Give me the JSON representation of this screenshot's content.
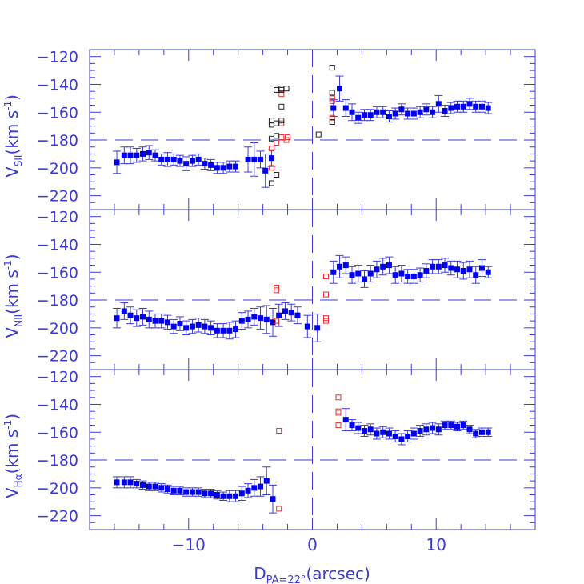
{
  "figure": {
    "xlabel_main": "D",
    "xlabel_sub": "PA=22°",
    "xlabel_tail": "(arcsec)",
    "color_axis": "#3b3bd6",
    "color_filled": "#0000ee",
    "color_red": "#dd3333",
    "color_black": "#222222"
  },
  "chart_data": [
    {
      "type": "scatter",
      "panel": "top",
      "ylabel_main": "V",
      "ylabel_sub": "SII",
      "ylabel_tail": "(km s",
      "ylabel_sup": "-1",
      "ylabel_close": ")",
      "xlim": [
        -18,
        18
      ],
      "ylim": [
        -230,
        -115
      ],
      "xticks": [
        -10,
        0,
        10
      ],
      "yticks": [
        -120,
        -140,
        -160,
        -180,
        -200,
        -220
      ],
      "reference_lines": {
        "horizontal_y": -180,
        "vertical_x": 0
      },
      "series": [
        {
          "marker": "filled-square",
          "points": [
            [
              -15.8,
              -196,
              8
            ],
            [
              -15.2,
              -191,
              6
            ],
            [
              -14.7,
              -191,
              6
            ],
            [
              -14.2,
              -191,
              5
            ],
            [
              -13.7,
              -190,
              5
            ],
            [
              -13.2,
              -189,
              5
            ],
            [
              -12.7,
              -191,
              4
            ],
            [
              -12.2,
              -194,
              4
            ],
            [
              -11.7,
              -194,
              5
            ],
            [
              -11.2,
              -194,
              4
            ],
            [
              -10.7,
              -195,
              4
            ],
            [
              -10.2,
              -197,
              5
            ],
            [
              -9.7,
              -195,
              4
            ],
            [
              -9.2,
              -194,
              4
            ],
            [
              -8.7,
              -197,
              4
            ],
            [
              -8.2,
              -198,
              4
            ],
            [
              -7.7,
              -200,
              4
            ],
            [
              -7.2,
              -200,
              4
            ],
            [
              -6.7,
              -199,
              4
            ],
            [
              -6.2,
              -199,
              4
            ],
            [
              -5.2,
              -194,
              9
            ],
            [
              -4.7,
              -194,
              12
            ],
            [
              -4.2,
              -194,
              6
            ],
            [
              -3.8,
              -202,
              12
            ],
            [
              -3.3,
              -193,
              6
            ],
            [
              1.7,
              -157,
              6
            ],
            [
              2.2,
              -143,
              9
            ],
            [
              2.7,
              -157,
              6
            ],
            [
              3.2,
              -160,
              6
            ],
            [
              3.7,
              -164,
              4
            ],
            [
              4.2,
              -162,
              4
            ],
            [
              4.7,
              -162,
              4
            ],
            [
              5.2,
              -160,
              4
            ],
            [
              5.7,
              -160,
              4
            ],
            [
              6.2,
              -163,
              4
            ],
            [
              6.7,
              -161,
              4
            ],
            [
              7.2,
              -158,
              4
            ],
            [
              7.7,
              -161,
              4
            ],
            [
              8.2,
              -161,
              4
            ],
            [
              8.7,
              -160,
              4
            ],
            [
              9.2,
              -158,
              4
            ],
            [
              9.7,
              -160,
              4
            ],
            [
              10.2,
              -154,
              6
            ],
            [
              10.7,
              -159,
              4
            ],
            [
              11.2,
              -157,
              4
            ],
            [
              11.7,
              -156,
              4
            ],
            [
              12.2,
              -156,
              4
            ],
            [
              12.7,
              -154,
              4
            ],
            [
              13.2,
              -156,
              4
            ],
            [
              13.7,
              -156,
              4
            ],
            [
              14.2,
              -157,
              4
            ]
          ]
        },
        {
          "marker": "open-square-red",
          "points": [
            [
              -3.3,
              -186
            ],
            [
              -3.3,
              -200
            ],
            [
              -2.9,
              -182
            ],
            [
              -2.5,
              -147
            ],
            [
              -2.5,
              -168
            ],
            [
              -2.5,
              -178
            ],
            [
              -2.1,
              -180
            ],
            [
              -2.0,
              -178
            ],
            [
              1.6,
              -150
            ],
            [
              1.6,
              -164
            ],
            [
              1.6,
              -152
            ]
          ]
        },
        {
          "marker": "open-square-black",
          "points": [
            [
              -3.3,
              -166
            ],
            [
              -3.3,
              -169
            ],
            [
              -3.3,
              -179
            ],
            [
              -3.3,
              -211
            ],
            [
              -2.9,
              -144
            ],
            [
              -2.9,
              -177
            ],
            [
              -2.9,
              -205
            ],
            [
              -2.9,
              -168
            ],
            [
              -2.5,
              -143
            ],
            [
              -2.5,
              -144
            ],
            [
              -2.5,
              -156
            ],
            [
              -2.5,
              -166
            ],
            [
              -2.1,
              -143
            ],
            [
              0.5,
              -176
            ],
            [
              1.6,
              -128
            ],
            [
              1.6,
              -146
            ],
            [
              1.6,
              -167
            ]
          ]
        }
      ]
    },
    {
      "type": "scatter",
      "panel": "middle",
      "ylabel_main": "V",
      "ylabel_sub": "NII",
      "ylabel_tail": "(km s",
      "ylabel_sup": "-1",
      "ylabel_close": ")",
      "xlim": [
        -18,
        18
      ],
      "ylim": [
        -230,
        -115
      ],
      "xticks": [
        -10,
        0,
        10
      ],
      "yticks": [
        -120,
        -140,
        -160,
        -180,
        -200,
        -220
      ],
      "reference_lines": {
        "horizontal_y": -180,
        "vertical_x": 0
      },
      "series": [
        {
          "marker": "filled-square",
          "points": [
            [
              -15.8,
              -193,
              7
            ],
            [
              -15.2,
              -188,
              6
            ],
            [
              -14.7,
              -191,
              6
            ],
            [
              -14.2,
              -193,
              6
            ],
            [
              -13.7,
              -192,
              6
            ],
            [
              -13.2,
              -194,
              6
            ],
            [
              -12.7,
              -195,
              5
            ],
            [
              -12.2,
              -195,
              5
            ],
            [
              -11.7,
              -196,
              5
            ],
            [
              -11.2,
              -199,
              5
            ],
            [
              -10.7,
              -197,
              5
            ],
            [
              -10.2,
              -200,
              5
            ],
            [
              -9.7,
              -199,
              5
            ],
            [
              -9.2,
              -198,
              5
            ],
            [
              -8.7,
              -199,
              5
            ],
            [
              -8.2,
              -200,
              5
            ],
            [
              -7.7,
              -202,
              5
            ],
            [
              -7.2,
              -202,
              5
            ],
            [
              -6.7,
              -202,
              6
            ],
            [
              -6.2,
              -201,
              6
            ],
            [
              -5.7,
              -195,
              6
            ],
            [
              -5.2,
              -194,
              6
            ],
            [
              -4.7,
              -192,
              6
            ],
            [
              -4.2,
              -193,
              8
            ],
            [
              -3.7,
              -194,
              10
            ],
            [
              -3.2,
              -196,
              10
            ],
            [
              -2.7,
              -191,
              8
            ],
            [
              -2.2,
              -188,
              6
            ],
            [
              -1.7,
              -189,
              6
            ],
            [
              -1.2,
              -191,
              6
            ],
            [
              -0.4,
              -199,
              8
            ],
            [
              0.4,
              -200,
              10
            ],
            [
              1.7,
              -160,
              8
            ],
            [
              2.2,
              -156,
              8
            ],
            [
              2.7,
              -155,
              6
            ],
            [
              3.2,
              -162,
              6
            ],
            [
              3.7,
              -161,
              6
            ],
            [
              4.2,
              -165,
              6
            ],
            [
              4.7,
              -161,
              6
            ],
            [
              5.2,
              -158,
              6
            ],
            [
              5.7,
              -156,
              6
            ],
            [
              6.2,
              -155,
              6
            ],
            [
              6.7,
              -162,
              6
            ],
            [
              7.2,
              -161,
              6
            ],
            [
              7.7,
              -163,
              5
            ],
            [
              8.2,
              -163,
              5
            ],
            [
              8.7,
              -162,
              5
            ],
            [
              9.2,
              -159,
              5
            ],
            [
              9.7,
              -156,
              5
            ],
            [
              10.2,
              -156,
              5
            ],
            [
              10.7,
              -155,
              5
            ],
            [
              11.2,
              -157,
              5
            ],
            [
              11.7,
              -158,
              6
            ],
            [
              12.2,
              -159,
              6
            ],
            [
              12.7,
              -158,
              6
            ],
            [
              13.2,
              -162,
              6
            ],
            [
              13.7,
              -157,
              6
            ],
            [
              14.2,
              -160,
              4
            ]
          ]
        },
        {
          "marker": "open-square-red",
          "points": [
            [
              -2.9,
              -171
            ],
            [
              -2.9,
              -173
            ],
            [
              -2.9,
              -195
            ],
            [
              1.1,
              -163
            ],
            [
              1.1,
              -176
            ],
            [
              1.1,
              -193
            ],
            [
              1.1,
              -195
            ]
          ]
        }
      ]
    },
    {
      "type": "scatter",
      "panel": "bottom",
      "ylabel_main": "V",
      "ylabel_sub": "Hα",
      "ylabel_tail": "(km s",
      "ylabel_sup": "-1",
      "ylabel_close": ")",
      "xlim": [
        -18,
        18
      ],
      "ylim": [
        -230,
        -115
      ],
      "xticks": [
        -10,
        0,
        10
      ],
      "yticks": [
        -120,
        -140,
        -160,
        -180,
        -200,
        -220
      ],
      "xticklabels": [
        "−10",
        "0",
        "10"
      ],
      "reference_lines": {
        "horizontal_y": -180,
        "vertical_x": 0
      },
      "series": [
        {
          "marker": "filled-square",
          "points": [
            [
              -15.8,
              -196,
              4
            ],
            [
              -15.2,
              -196,
              4
            ],
            [
              -14.7,
              -196,
              4
            ],
            [
              -14.2,
              -197,
              3
            ],
            [
              -13.7,
              -198,
              3
            ],
            [
              -13.2,
              -199,
              3
            ],
            [
              -12.7,
              -199,
              3
            ],
            [
              -12.2,
              -200,
              3
            ],
            [
              -11.7,
              -201,
              3
            ],
            [
              -11.2,
              -202,
              3
            ],
            [
              -10.7,
              -202,
              3
            ],
            [
              -10.2,
              -203,
              3
            ],
            [
              -9.7,
              -203,
              3
            ],
            [
              -9.2,
              -203,
              3
            ],
            [
              -8.7,
              -204,
              3
            ],
            [
              -8.2,
              -204,
              3
            ],
            [
              -7.7,
              -205,
              3
            ],
            [
              -7.2,
              -206,
              3
            ],
            [
              -6.7,
              -206,
              4
            ],
            [
              -6.2,
              -206,
              4
            ],
            [
              -5.7,
              -204,
              5
            ],
            [
              -5.2,
              -202,
              5
            ],
            [
              -4.7,
              -200,
              6
            ],
            [
              -4.2,
              -199,
              7
            ],
            [
              -3.7,
              -195,
              10
            ],
            [
              -3.2,
              -208,
              10
            ],
            [
              2.7,
              -151,
              8
            ],
            [
              3.2,
              -155,
              4
            ],
            [
              3.7,
              -157,
              4
            ],
            [
              4.2,
              -159,
              4
            ],
            [
              4.7,
              -158,
              4
            ],
            [
              5.2,
              -161,
              4
            ],
            [
              5.7,
              -160,
              4
            ],
            [
              6.2,
              -161,
              4
            ],
            [
              6.7,
              -163,
              4
            ],
            [
              7.2,
              -165,
              4
            ],
            [
              7.7,
              -163,
              4
            ],
            [
              8.2,
              -161,
              4
            ],
            [
              8.7,
              -159,
              4
            ],
            [
              9.2,
              -158,
              4
            ],
            [
              9.7,
              -157,
              4
            ],
            [
              10.2,
              -158,
              4
            ],
            [
              10.7,
              -155,
              3
            ],
            [
              11.2,
              -155,
              3
            ],
            [
              11.7,
              -156,
              3
            ],
            [
              12.2,
              -155,
              3
            ],
            [
              12.7,
              -158,
              3
            ],
            [
              13.2,
              -161,
              3
            ],
            [
              13.7,
              -160,
              3
            ],
            [
              14.2,
              -160,
              3
            ]
          ]
        },
        {
          "marker": "open-square-red",
          "points": [
            [
              -2.7,
              -159
            ],
            [
              -2.7,
              -215
            ],
            [
              2.1,
              -135
            ],
            [
              2.1,
              -145
            ],
            [
              2.1,
              -146
            ],
            [
              2.1,
              -155
            ]
          ]
        }
      ]
    }
  ]
}
